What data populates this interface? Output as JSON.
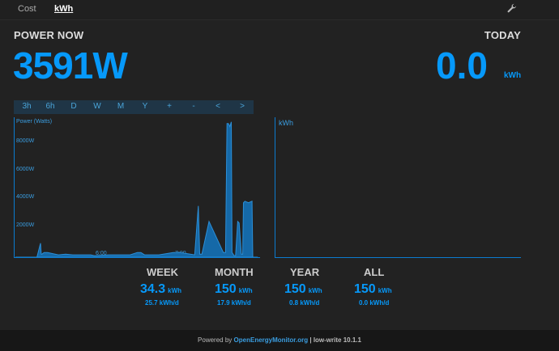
{
  "tabs": [
    {
      "label": "Cost",
      "active": false
    },
    {
      "label": "kWh",
      "active": true
    }
  ],
  "settings_icon": "wrench-icon",
  "power_now": {
    "label": "POWER NOW",
    "value": "3591W"
  },
  "today": {
    "label": "TODAY",
    "value": "0.0",
    "unit": "kWh"
  },
  "range_buttons": [
    "3h",
    "6h",
    "D",
    "W",
    "M",
    "Y",
    "+",
    "-",
    "<",
    ">"
  ],
  "colors": {
    "accent": "#0699fa",
    "background": "#222222",
    "button_bar": "#1f3546"
  },
  "chart_data": [
    {
      "type": "area",
      "title": "Power (Watts)",
      "ylim": [
        0,
        9000
      ],
      "ytick_labels": [
        "8000W",
        "6000W",
        "4000W",
        "2000W"
      ],
      "xtick_labels": [
        "6:00",
        "7:00"
      ],
      "x": [
        0,
        0.3,
        0.35,
        0.36,
        0.37,
        0.4,
        0.45,
        0.6,
        0.7,
        0.8,
        1.05,
        1.1,
        1.3,
        1.6,
        1.7,
        1.75,
        1.8,
        2.0,
        2.2,
        2.3,
        2.5,
        2.55,
        2.57,
        2.6,
        2.7,
        2.9,
        2.93,
        2.95,
        2.97,
        2.99,
        3.01,
        3.02,
        3.05,
        3.07,
        3.1,
        3.12,
        3.15,
        3.17,
        3.18,
        3.2,
        3.25,
        3.3,
        3.31,
        3.33,
        3.35,
        3.37,
        3.38
      ],
      "y": [
        0,
        0,
        900,
        200,
        200,
        300,
        300,
        150,
        200,
        150,
        150,
        100,
        150,
        150,
        300,
        300,
        150,
        150,
        300,
        300,
        150,
        3300,
        200,
        200,
        2300,
        300,
        300,
        8600,
        8600,
        8400,
        8700,
        300,
        100,
        100,
        2300,
        2200,
        200,
        200,
        3500,
        3600,
        3500,
        3600,
        0,
        0,
        0,
        0,
        0
      ]
    },
    {
      "type": "bar",
      "title": "kWh",
      "values": []
    }
  ],
  "stats": [
    {
      "label": "WEEK",
      "value": "34.3",
      "unit": "kWh",
      "sub": "25.7 kWh/d"
    },
    {
      "label": "MONTH",
      "value": "150",
      "unit": "kWh",
      "sub": "17.9 kWh/d"
    },
    {
      "label": "YEAR",
      "value": "150",
      "unit": "kWh",
      "sub": "0.8 kWh/d"
    },
    {
      "label": "ALL",
      "value": "150",
      "unit": "kWh",
      "sub": "0.0 kWh/d"
    }
  ],
  "footer": {
    "prefix": "Powered by",
    "link": "OpenEnergyMonitor.org",
    "separator": "|",
    "version": "low-write 10.1.1"
  }
}
